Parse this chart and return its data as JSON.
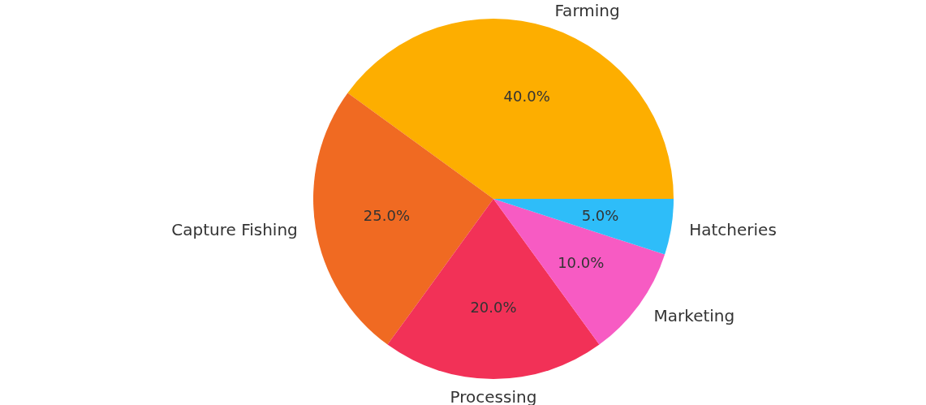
{
  "chart_data": {
    "type": "pie",
    "categories": [
      "Farming",
      "Capture Fishing",
      "Processing",
      "Marketing",
      "Hatcheries"
    ],
    "values": [
      40,
      25,
      20,
      10,
      5
    ],
    "colors": [
      "#fdae00",
      "#f06a22",
      "#f23157",
      "#f75bc3",
      "#2ebdf9"
    ],
    "value_labels": [
      "40.0%",
      "25.0%",
      "20.0%",
      "10.0%",
      "5.0%"
    ]
  }
}
